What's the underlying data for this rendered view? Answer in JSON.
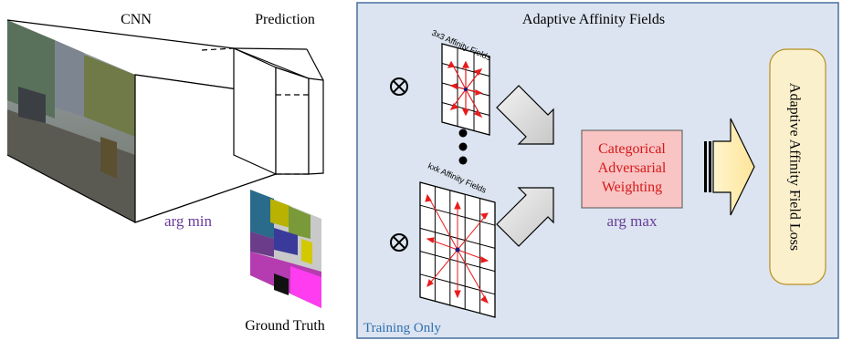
{
  "left": {
    "cnn_label": "CNN",
    "prediction_label": "Prediction",
    "argmin_label": "arg min",
    "ground_truth_label": "Ground Truth"
  },
  "right": {
    "panel_title": "Adaptive Affinity Fields",
    "grid_small_label": "3x3 Affinity Fields",
    "grid_large_label": "kxk Affinity Fields",
    "otimes_symbol": "⊗",
    "weighting_line1": "Categorical",
    "weighting_line2": "Adversarial",
    "weighting_line3": "Weighting",
    "argmax_label": "arg max",
    "loss_label": "Adaptive Affinity Field Loss",
    "training_only_label": "Training Only"
  },
  "colors": {
    "panel_bg": "#dbe4f0",
    "panel_border": "#4a6fa0",
    "weighting_fill": "#f8c4c4",
    "weighting_text": "#d81818",
    "argmax_text": "#6a3c9a",
    "argmin_text": "#6a3c9a",
    "loss_fill": "#fbf0cc",
    "loss_border": "#b89020",
    "training_text": "#2f6fb0",
    "affinity_arrow": "#e81c1c"
  }
}
